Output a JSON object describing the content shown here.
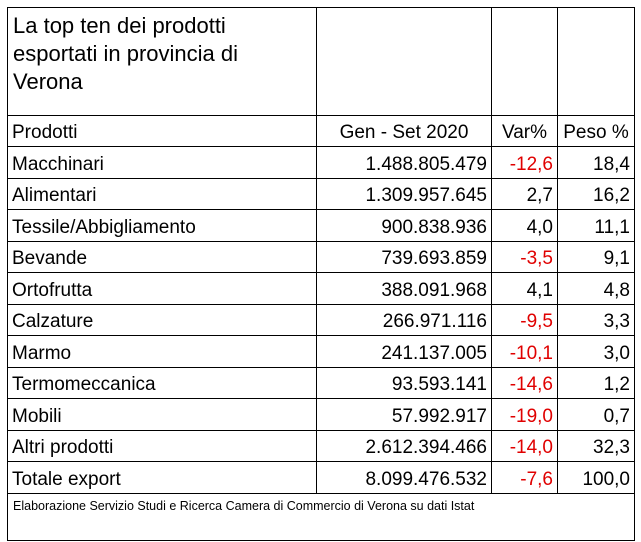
{
  "title": "La top ten dei prodotti esportati in provincia di Verona",
  "headers": {
    "product": "Prodotti",
    "period": "Gen - Set 2020",
    "var": "Var%",
    "weight": "Peso %"
  },
  "rows": [
    {
      "product": "Macchinari",
      "value": "1.488.805.479",
      "var": "-12,6",
      "weight": "18,4"
    },
    {
      "product": "Alimentari",
      "value": "1.309.957.645",
      "var": "2,7",
      "weight": "16,2"
    },
    {
      "product": "Tessile/Abbigliamento",
      "value": "900.838.936",
      "var": "4,0",
      "weight": "11,1"
    },
    {
      "product": "Bevande",
      "value": "739.693.859",
      "var": "-3,5",
      "weight": "9,1"
    },
    {
      "product": "Ortofrutta",
      "value": "388.091.968",
      "var": "4,1",
      "weight": "4,8"
    },
    {
      "product": "Calzature",
      "value": "266.971.116",
      "var": "-9,5",
      "weight": "3,3"
    },
    {
      "product": "Marmo",
      "value": "241.137.005",
      "var": "-10,1",
      "weight": "3,0"
    },
    {
      "product": "Termomeccanica",
      "value": "93.593.141",
      "var": "-14,6",
      "weight": "1,2"
    },
    {
      "product": "Mobili",
      "value": "57.992.917",
      "var": "-19,0",
      "weight": "0,7"
    },
    {
      "product": "Altri prodotti",
      "value": "2.612.394.466",
      "var": "-14,0",
      "weight": "32,3"
    },
    {
      "product": "Totale export",
      "value": "8.099.476.532",
      "var": "-7,6",
      "weight": "100,0"
    }
  ],
  "note": "Elaborazione Servizio Studi e Ricerca Camera di Commercio di Verona su dati Istat",
  "colors": {
    "negative": "#e00000",
    "text": "#000000",
    "border": "#000000"
  }
}
